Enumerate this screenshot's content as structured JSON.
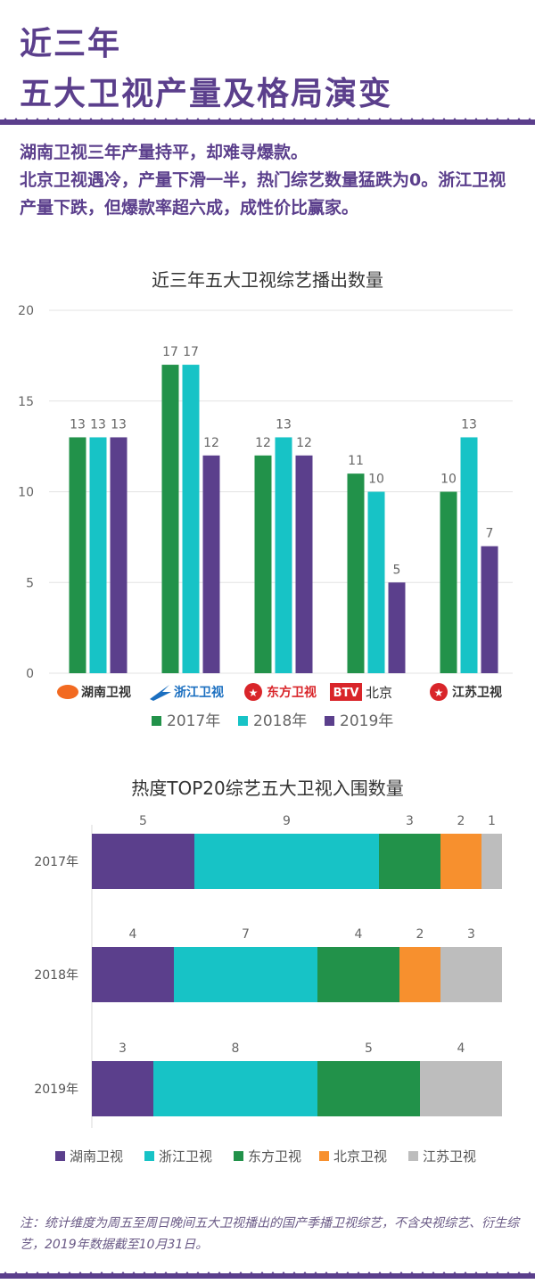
{
  "header": {
    "title_line1": "近三年",
    "title_line2": "五大卫视产量及格局演变"
  },
  "intro": {
    "line1": "湖南卫视三年产量持平，却难寻爆款。",
    "line2": "北京卫视遇冷，产量下滑一半，热门综艺数量猛跌为0。浙江卫视产量下跌，但爆款率超六成，成性价比赢家。"
  },
  "colors": {
    "y2017": "#22924a",
    "y2018": "#17c3c6",
    "y2019": "#5b3f8c",
    "hunan": "#5b3f8c",
    "zhejiang": "#17c3c6",
    "dongfang": "#22924a",
    "beijing": "#f7902e",
    "jiangsu": "#bdbdbd",
    "band": "#5b3f8c"
  },
  "chart_data": [
    {
      "type": "bar",
      "title": "近三年五大卫视综艺播出数量",
      "categories": [
        "湖南卫视",
        "浙江卫视",
        "东方卫视",
        "BTV北京",
        "江苏卫视"
      ],
      "series": [
        {
          "name": "2017年",
          "values": [
            13,
            17,
            12,
            11,
            10
          ]
        },
        {
          "name": "2018年",
          "values": [
            13,
            17,
            13,
            10,
            13
          ]
        },
        {
          "name": "2019年",
          "values": [
            13,
            12,
            12,
            5,
            7
          ]
        }
      ],
      "ylim": [
        0,
        20
      ],
      "yticks": [
        0,
        5,
        10,
        15,
        20
      ],
      "grid": true,
      "legend": "bottom"
    },
    {
      "type": "bar",
      "orientation": "horizontal-stacked",
      "title": "热度TOP20综艺五大卫视入围数量",
      "categories": [
        "2017年",
        "2018年",
        "2019年"
      ],
      "series": [
        {
          "name": "湖南卫视",
          "values": [
            5,
            4,
            3
          ]
        },
        {
          "name": "浙江卫视",
          "values": [
            9,
            7,
            8
          ]
        },
        {
          "name": "东方卫视",
          "values": [
            3,
            4,
            5
          ]
        },
        {
          "name": "北京卫视",
          "values": [
            2,
            2,
            0
          ]
        },
        {
          "name": "江苏卫视",
          "values": [
            1,
            3,
            4
          ]
        }
      ],
      "xlim": [
        0,
        20
      ],
      "legend": "bottom"
    }
  ],
  "logos": [
    "湖南卫视",
    "浙江卫视",
    "东方卫视",
    "BTV",
    "北京",
    "江苏卫视"
  ],
  "note": "注：统计维度为周五至周日晚间五大卫视播出的国产季播卫视综艺，不含央视综艺、衍生综艺，2019年数据截至10月31日。"
}
